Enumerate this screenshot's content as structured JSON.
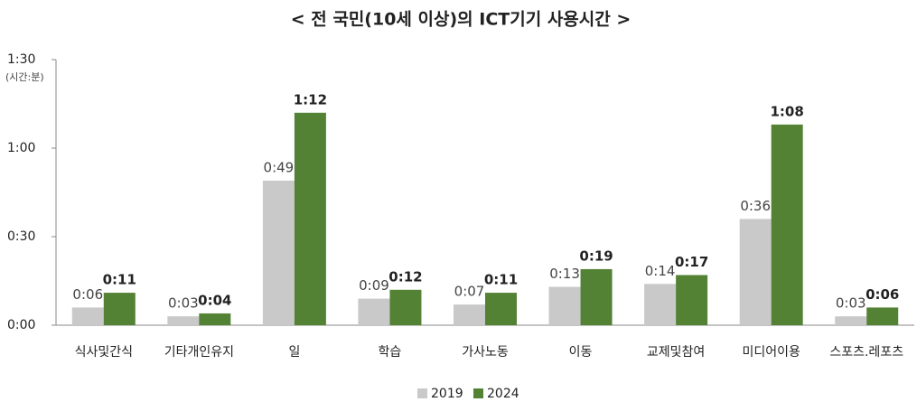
{
  "chart_data": {
    "type": "bar",
    "title": "< 전 국민(10세 이상)의 ICT기기 사용시간 >",
    "y_unit": "(시간:분)",
    "categories": [
      "식사및간식",
      "기타개인유지",
      "일",
      "학습",
      "가사노동",
      "이동",
      "교제및참여",
      "미디어이용",
      "스포츠.레포츠"
    ],
    "series": [
      {
        "name": "2019",
        "color": "#c9c9c9",
        "values": [
          6,
          3,
          49,
          9,
          7,
          13,
          14,
          36,
          3
        ],
        "value_labels": [
          "0:06",
          "0:03",
          "0:49",
          "0:09",
          "0:07",
          "0:13",
          "0:14",
          "0:36",
          "0:03"
        ]
      },
      {
        "name": "2024",
        "color": "#538234",
        "values": [
          11,
          4,
          72,
          12,
          11,
          19,
          17,
          68,
          6
        ],
        "value_labels": [
          "0:11",
          "0:04",
          "1:12",
          "0:12",
          "0:11",
          "0:19",
          "0:17",
          "1:08",
          "0:06"
        ]
      }
    ],
    "ylim": [
      0,
      90
    ],
    "yticks": [
      {
        "value": 0,
        "label": "0:00"
      },
      {
        "value": 30,
        "label": "0:30"
      },
      {
        "value": 60,
        "label": "1:00"
      },
      {
        "value": 90,
        "label": "1:30"
      }
    ],
    "legend": "bottom"
  }
}
